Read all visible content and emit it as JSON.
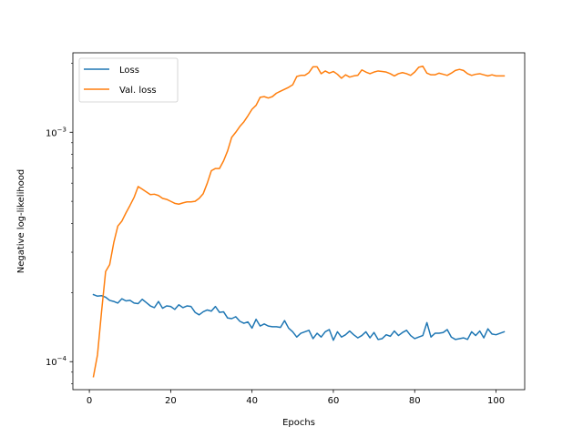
{
  "chart_data": {
    "type": "line",
    "title": "",
    "xlabel": "Epochs",
    "ylabel": "Negative log-likelihood",
    "xlim": [
      -4.05,
      107.05
    ],
    "ylim": [
      7.55e-05,
      0.00222
    ],
    "yscale": "log",
    "xticks": [
      0,
      20,
      40,
      60,
      80,
      100
    ],
    "yticks": [
      {
        "value": 0.0001,
        "base": "10",
        "exponent": "−4"
      },
      {
        "value": 0.001,
        "base": "10",
        "exponent": "−3"
      }
    ],
    "grid": false,
    "legend_position": "top-left",
    "series": [
      {
        "name": "Loss",
        "color": "#1f77b4",
        "x": [
          1,
          2,
          3,
          4,
          5,
          6,
          7,
          8,
          9,
          10,
          11,
          12,
          13,
          14,
          15,
          16,
          17,
          18,
          19,
          20,
          21,
          22,
          23,
          24,
          25,
          26,
          27,
          28,
          29,
          30,
          31,
          32,
          33,
          34,
          35,
          36,
          37,
          38,
          39,
          40,
          41,
          42,
          43,
          44,
          45,
          46,
          47,
          48,
          49,
          50,
          51,
          52,
          53,
          54,
          55,
          56,
          57,
          58,
          59,
          60,
          61,
          62,
          63,
          64,
          65,
          66,
          67,
          68,
          69,
          70,
          71,
          72,
          73,
          74,
          75,
          76,
          77,
          78,
          79,
          80,
          81,
          82,
          83,
          84,
          85,
          86,
          87,
          88,
          89,
          90,
          91,
          92,
          93,
          94,
          95,
          96,
          97,
          98,
          99,
          100,
          101,
          102
        ],
        "values": [
          0.000196,
          0.000193,
          0.000194,
          0.000191,
          0.000185,
          0.000183,
          0.00018,
          0.000188,
          0.000184,
          0.000185,
          0.00018,
          0.000179,
          0.000187,
          0.000181,
          0.000175,
          0.000172,
          0.000183,
          0.000171,
          0.000175,
          0.000174,
          0.000169,
          0.000177,
          0.000172,
          0.000175,
          0.000174,
          0.000164,
          0.00016,
          0.000165,
          0.000168,
          0.000166,
          0.000174,
          0.000164,
          0.000165,
          0.000155,
          0.000154,
          0.000157,
          0.00015,
          0.000147,
          0.000149,
          0.00014,
          0.000153,
          0.000143,
          0.000146,
          0.000143,
          0.000142,
          0.000142,
          0.000141,
          0.000151,
          0.00014,
          0.000135,
          0.000128,
          0.000133,
          0.000135,
          0.000137,
          0.000126,
          0.000133,
          0.000128,
          0.000135,
          0.000138,
          0.000124,
          0.000135,
          0.000128,
          0.000131,
          0.000136,
          0.000131,
          0.000127,
          0.00013,
          0.000135,
          0.000127,
          0.000134,
          0.000125,
          0.000126,
          0.000131,
          0.000129,
          0.000136,
          0.00013,
          0.000134,
          0.000137,
          0.00013,
          0.000126,
          0.000128,
          0.00013,
          0.000148,
          0.000128,
          0.000133,
          0.000133,
          0.000134,
          0.000138,
          0.000128,
          0.000125,
          0.000126,
          0.000127,
          0.000125,
          0.000135,
          0.00013,
          0.000136,
          0.000127,
          0.000139,
          0.000132,
          0.000131,
          0.000133,
          0.000135
        ]
      },
      {
        "name": "Val. loss",
        "color": "#ff7f0e",
        "x": [
          1,
          2,
          3,
          4,
          5,
          6,
          7,
          8,
          9,
          10,
          11,
          12,
          13,
          14,
          15,
          16,
          17,
          18,
          19,
          20,
          21,
          22,
          23,
          24,
          25,
          26,
          27,
          28,
          29,
          30,
          31,
          32,
          33,
          34,
          35,
          36,
          37,
          38,
          39,
          40,
          41,
          42,
          43,
          44,
          45,
          46,
          47,
          48,
          49,
          50,
          51,
          52,
          53,
          54,
          55,
          56,
          57,
          58,
          59,
          60,
          61,
          62,
          63,
          64,
          65,
          66,
          67,
          68,
          69,
          70,
          71,
          72,
          73,
          74,
          75,
          76,
          77,
          78,
          79,
          80,
          81,
          82,
          83,
          84,
          85,
          86,
          87,
          88,
          89,
          90,
          91,
          92,
          93,
          94,
          95,
          96,
          97,
          98,
          99,
          100,
          101,
          102
        ],
        "values": [
          8.6e-05,
          0.000107,
          0.000165,
          0.000247,
          0.000265,
          0.00033,
          0.00039,
          0.00041,
          0.000445,
          0.00048,
          0.00052,
          0.00058,
          0.000565,
          0.00055,
          0.000535,
          0.000537,
          0.00053,
          0.000515,
          0.00051,
          0.0005,
          0.00049,
          0.000486,
          0.000492,
          0.000497,
          0.000497,
          0.0005,
          0.000515,
          0.00054,
          0.0006,
          0.00068,
          0.000695,
          0.000695,
          0.00075,
          0.00083,
          0.00095,
          0.001,
          0.00106,
          0.00111,
          0.00118,
          0.00126,
          0.00131,
          0.00142,
          0.00143,
          0.00141,
          0.00143,
          0.00148,
          0.00151,
          0.00154,
          0.00157,
          0.00161,
          0.00175,
          0.00177,
          0.00177,
          0.00182,
          0.00193,
          0.00193,
          0.0018,
          0.00185,
          0.00181,
          0.00184,
          0.00179,
          0.00172,
          0.00178,
          0.00174,
          0.00176,
          0.00177,
          0.00187,
          0.00183,
          0.0018,
          0.00183,
          0.00185,
          0.00184,
          0.00183,
          0.0018,
          0.00176,
          0.0018,
          0.00182,
          0.0018,
          0.00177,
          0.00183,
          0.00192,
          0.00194,
          0.00181,
          0.00178,
          0.00178,
          0.00181,
          0.00179,
          0.00177,
          0.00181,
          0.00186,
          0.00188,
          0.00186,
          0.0018,
          0.00177,
          0.00179,
          0.0018,
          0.00178,
          0.00176,
          0.00178,
          0.00176,
          0.00176,
          0.00176
        ]
      }
    ]
  }
}
